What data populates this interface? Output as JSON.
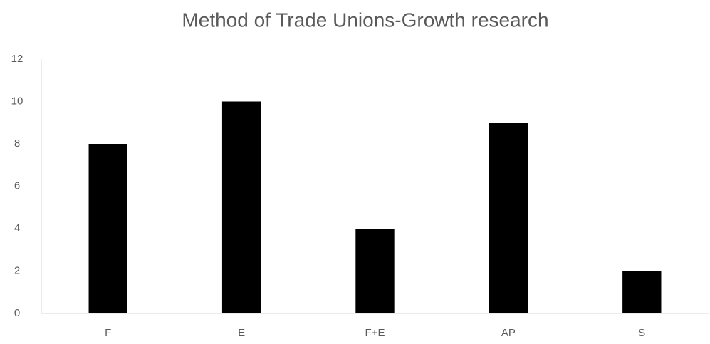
{
  "chart_data": {
    "type": "bar",
    "title": "Method of Trade Unions-Growth research",
    "categories": [
      "F",
      "E",
      "F+E",
      "AP",
      "S"
    ],
    "values": [
      8,
      10,
      4,
      9,
      2
    ],
    "color": "#000000",
    "ylim": [
      0,
      12
    ],
    "yticks": [
      0,
      2,
      4,
      6,
      8,
      10,
      12
    ],
    "grid": false
  }
}
